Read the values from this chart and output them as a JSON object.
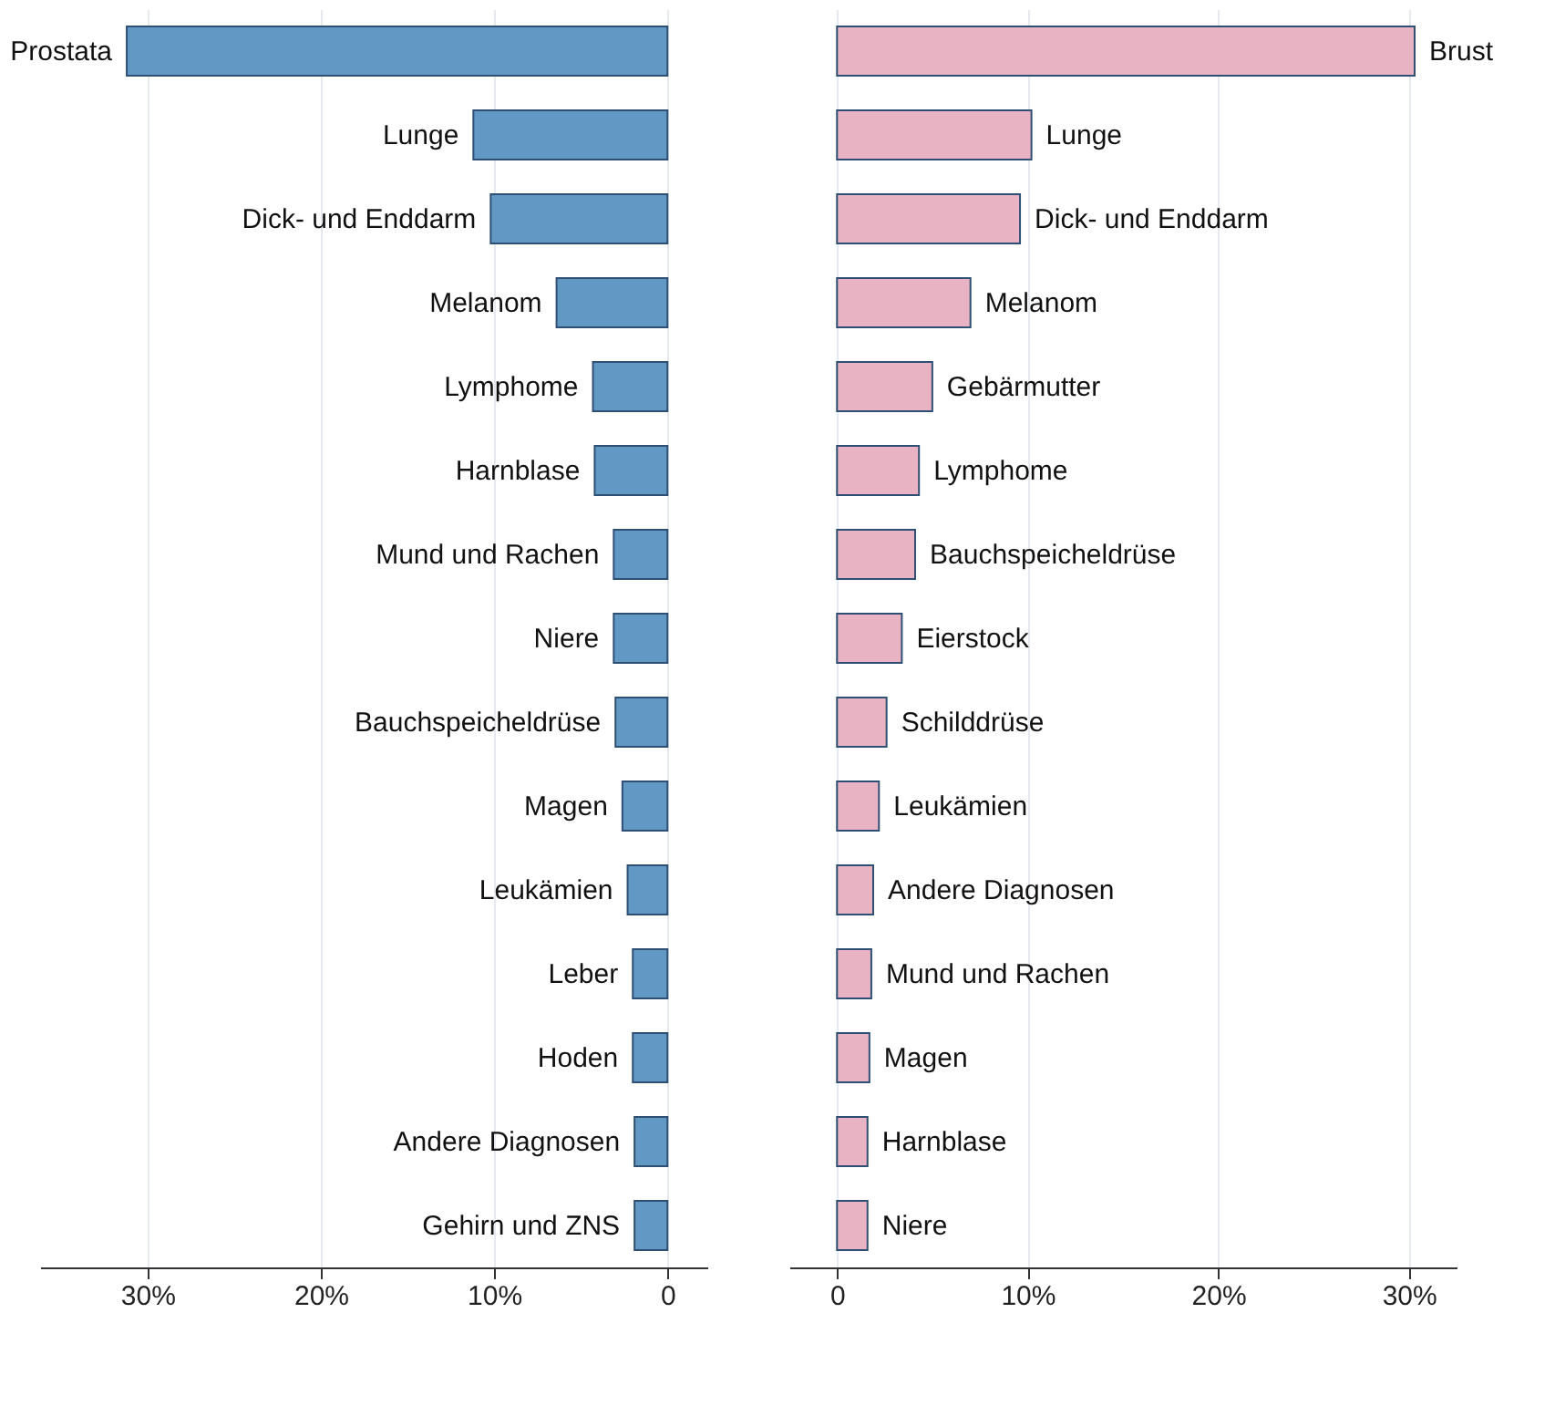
{
  "chart_data": [
    {
      "type": "bar",
      "orientation": "horizontal",
      "color": "#6199c4",
      "grid": "x",
      "categories": [
        "Prostata",
        "Lunge",
        "Dick- und Enddarm",
        "Melanom",
        "Lymphome",
        "Harnblase",
        "Mund und Rachen",
        "Niere",
        "Bauchspeicheldrüse",
        "Magen",
        "Leukämien",
        "Leber",
        "Hoden",
        "Andere Diagnosen",
        "Gehirn und ZNS"
      ],
      "values": [
        31.2,
        11.2,
        10.2,
        6.4,
        4.3,
        4.2,
        3.1,
        3.1,
        3.0,
        2.6,
        2.3,
        2.0,
        2.0,
        1.9,
        1.9
      ],
      "xlim": [
        36.2,
        -2.3
      ],
      "xticks": [
        {
          "value": 30,
          "label": "30%"
        },
        {
          "value": 20,
          "label": "20%"
        },
        {
          "value": 10,
          "label": "10%"
        },
        0
      ]
    },
    {
      "type": "bar",
      "orientation": "horizontal",
      "color": "#e8b4c4",
      "grid": "x",
      "categories": [
        "Brust",
        "Lunge",
        "Dick- und Enddarm",
        "Melanom",
        "Gebärmutter",
        "Lymphome",
        "Bauchspeicheldrüse",
        "Eierstock",
        "Schilddrüse",
        "Leukämien",
        "Andere Diagnosen",
        "Mund und Rachen",
        "Magen",
        "Harnblase",
        "Niere"
      ],
      "values": [
        30.3,
        10.2,
        9.6,
        7.0,
        5.0,
        4.3,
        4.1,
        3.4,
        2.6,
        2.2,
        1.9,
        1.8,
        1.7,
        1.6,
        1.6
      ],
      "xlim": [
        -2.5,
        32.5
      ],
      "xticks": [
        0,
        {
          "value": 10,
          "label": "10%"
        },
        {
          "value": 20,
          "label": "20%"
        },
        {
          "value": 30,
          "label": "30%"
        }
      ]
    }
  ]
}
